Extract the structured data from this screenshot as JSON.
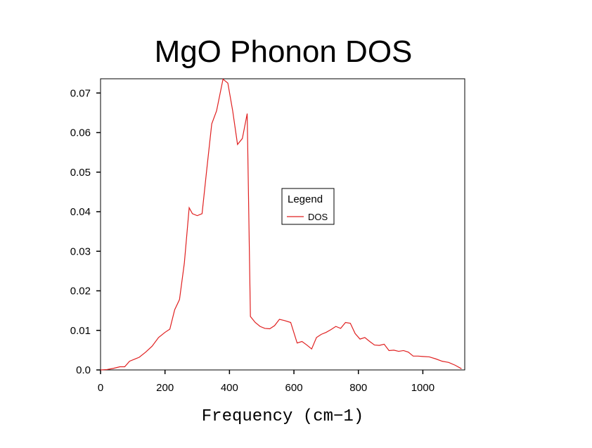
{
  "chart_data": {
    "type": "line",
    "title": "MgO Phonon DOS",
    "xlabel": "Frequency (cm−1)",
    "ylabel": "",
    "xlim": [
      0,
      1130
    ],
    "ylim": [
      0,
      0.0736
    ],
    "x_ticks": [
      0,
      200,
      400,
      600,
      800,
      1000
    ],
    "y_ticks": [
      "0.0",
      "0.01",
      "0.02",
      "0.03",
      "0.04",
      "0.05",
      "0.06",
      "0.07"
    ],
    "legend": {
      "title": "Legend",
      "placement": "center-right"
    },
    "series": [
      {
        "name": "DOS",
        "color": "#e02020",
        "x": [
          0,
          20,
          40,
          60,
          75,
          90,
          105,
          120,
          140,
          160,
          180,
          200,
          215,
          230,
          245,
          260,
          275,
          285,
          300,
          315,
          330,
          345,
          360,
          380,
          395,
          410,
          425,
          440,
          455,
          465,
          480,
          495,
          510,
          525,
          540,
          555,
          570,
          590,
          610,
          625,
          640,
          655,
          670,
          685,
          700,
          715,
          730,
          745,
          760,
          775,
          790,
          805,
          820,
          835,
          850,
          865,
          880,
          895,
          910,
          925,
          940,
          955,
          970,
          985,
          1000,
          1020,
          1040,
          1060,
          1080,
          1100,
          1120
        ],
        "y": [
          0,
          0.0001,
          0.0004,
          0.0008,
          0.0008,
          0.0022,
          0.0027,
          0.0032,
          0.0045,
          0.006,
          0.0082,
          0.0095,
          0.0103,
          0.0152,
          0.0178,
          0.027,
          0.041,
          0.0395,
          0.039,
          0.0395,
          0.051,
          0.0622,
          0.0655,
          0.0735,
          0.0725,
          0.0655,
          0.057,
          0.0585,
          0.0648,
          0.0135,
          0.012,
          0.011,
          0.0105,
          0.0104,
          0.0112,
          0.0128,
          0.0125,
          0.012,
          0.0068,
          0.0072,
          0.0063,
          0.0053,
          0.0082,
          0.009,
          0.0095,
          0.0102,
          0.011,
          0.0105,
          0.012,
          0.0118,
          0.0092,
          0.0078,
          0.0082,
          0.0072,
          0.0063,
          0.0062,
          0.0065,
          0.0049,
          0.005,
          0.0047,
          0.0049,
          0.0045,
          0.0035,
          0.0035,
          0.0034,
          0.0033,
          0.0028,
          0.0022,
          0.0019,
          0.0012,
          0.0003
        ]
      }
    ]
  }
}
